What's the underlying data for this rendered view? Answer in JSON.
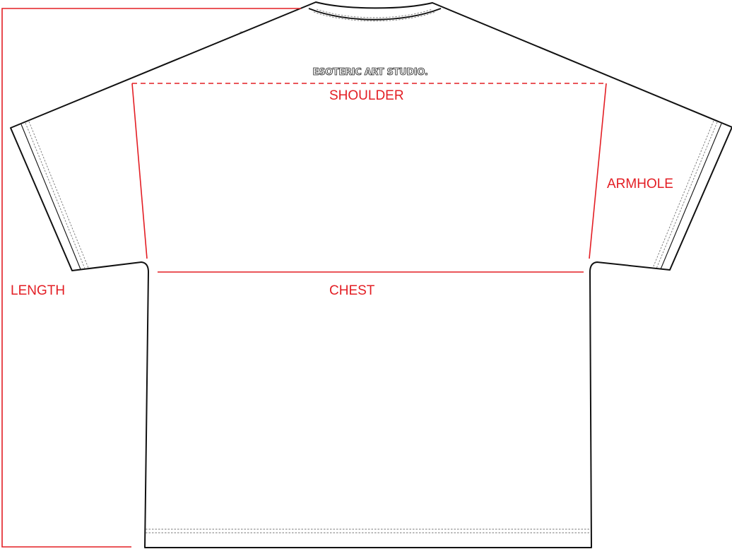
{
  "garment": {
    "print_text": "ESOTERIC ART STUDIO."
  },
  "measurements": {
    "shoulder": "SHOULDER",
    "armhole": "ARMHOLE",
    "chest": "CHEST",
    "length": "LENGTH"
  },
  "colors": {
    "measure_line": "#e31e24",
    "outline": "#111111",
    "stitch": "#777777"
  }
}
